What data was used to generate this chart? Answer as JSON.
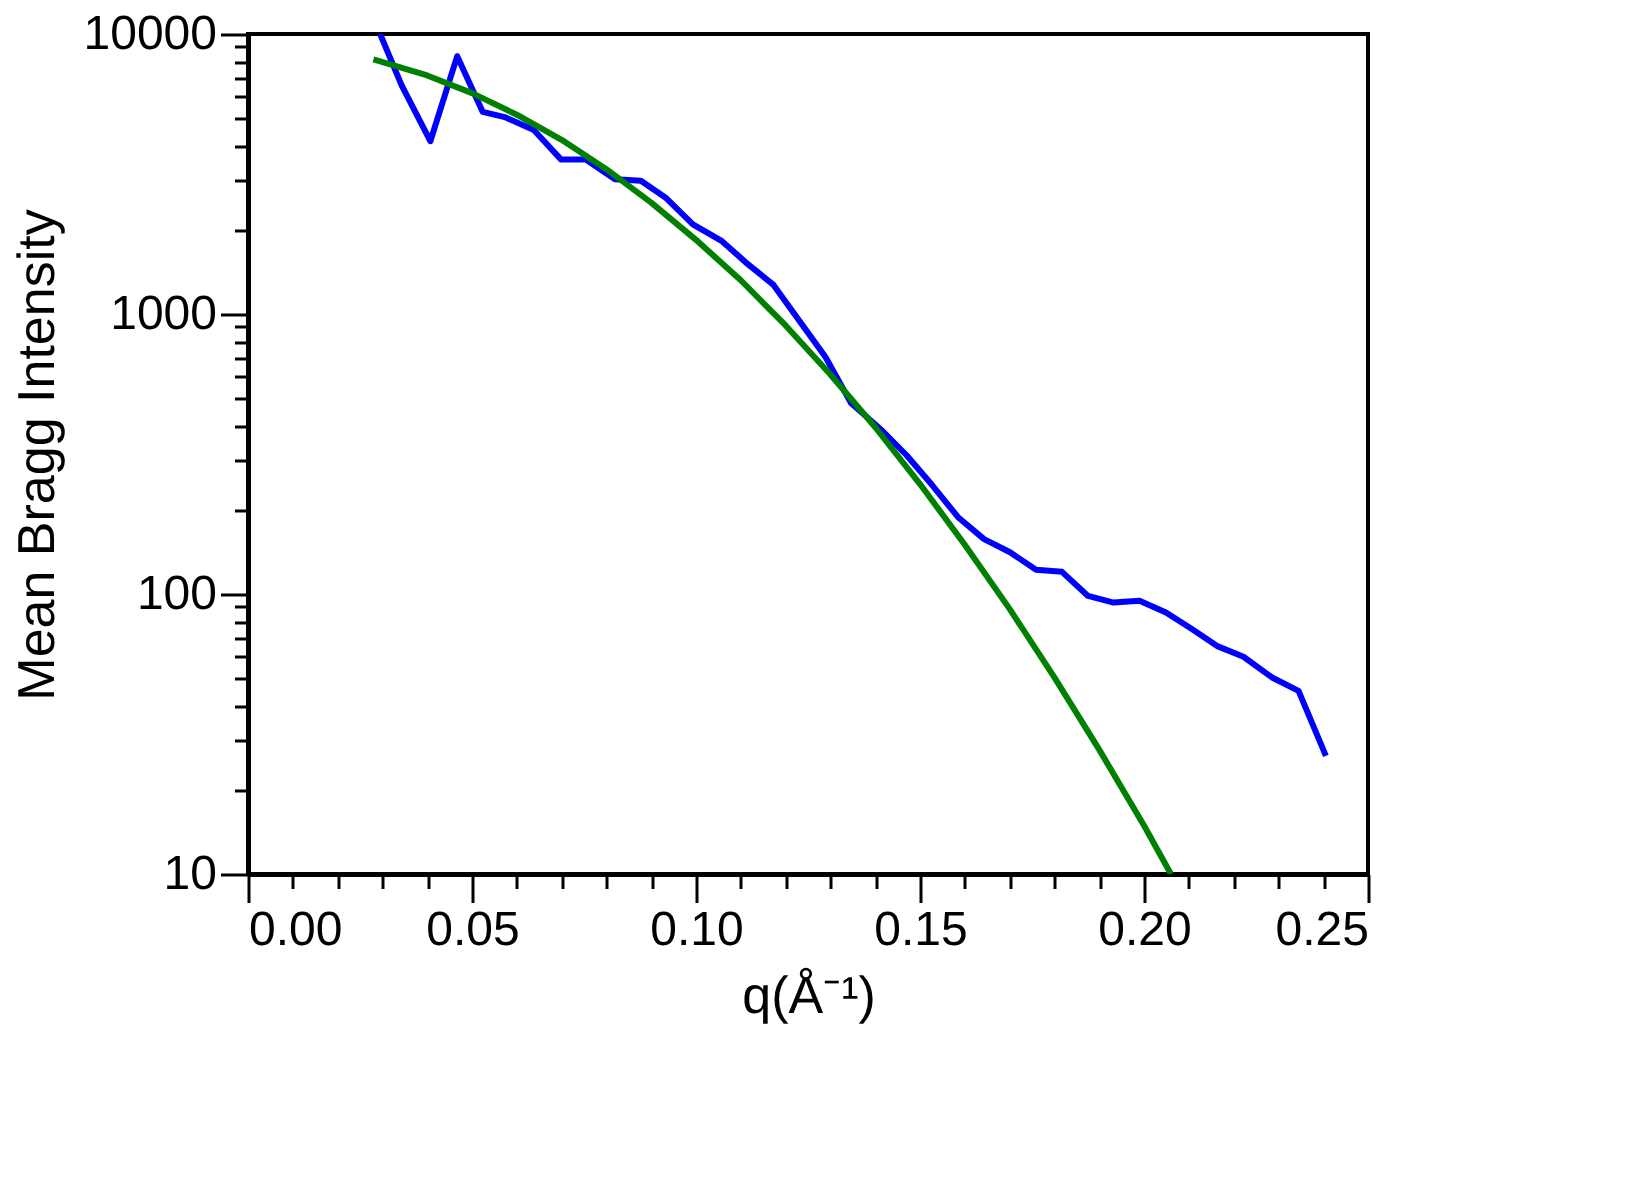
{
  "chart_data": {
    "type": "line",
    "xlabel": "q(Å⁻¹)",
    "ylabel": "Mean Bragg Intensity",
    "log": "y",
    "grid": false,
    "marker": "none",
    "line_style": "solid",
    "xlim": [
      0,
      0.25
    ],
    "ylim": [
      10,
      10000
    ],
    "xticks": [
      {
        "value": 0,
        "label": "0.00"
      },
      {
        "value": 0.01,
        "label": null
      },
      {
        "value": 0.02,
        "label": null
      },
      {
        "value": 0.03,
        "label": null
      },
      {
        "value": 0.04,
        "label": null
      },
      {
        "value": 0.05,
        "label": "0.05"
      },
      {
        "value": 0.06,
        "label": null
      },
      {
        "value": 0.07,
        "label": null
      },
      {
        "value": 0.08,
        "label": null
      },
      {
        "value": 0.09,
        "label": null
      },
      {
        "value": 0.1,
        "label": "0.10"
      },
      {
        "value": 0.11,
        "label": null
      },
      {
        "value": 0.12,
        "label": null
      },
      {
        "value": 0.13,
        "label": null
      },
      {
        "value": 0.14,
        "label": null
      },
      {
        "value": 0.15,
        "label": "0.15"
      },
      {
        "value": 0.16,
        "label": null
      },
      {
        "value": 0.17,
        "label": null
      },
      {
        "value": 0.18,
        "label": null
      },
      {
        "value": 0.19,
        "label": null
      },
      {
        "value": 0.2,
        "label": "0.20"
      },
      {
        "value": 0.21,
        "label": null
      },
      {
        "value": 0.22,
        "label": null
      },
      {
        "value": 0.23,
        "label": null
      },
      {
        "value": 0.24,
        "label": null
      },
      {
        "value": 0.25,
        "label": "0.25"
      }
    ],
    "yticks": [
      10,
      {
        "value": 20,
        "label": null
      },
      {
        "value": 30,
        "label": null
      },
      {
        "value": 40,
        "label": null
      },
      {
        "value": 50,
        "label": null
      },
      {
        "value": 60,
        "label": null
      },
      {
        "value": 70,
        "label": null
      },
      {
        "value": 80,
        "label": null
      },
      {
        "value": 90,
        "label": null
      },
      100,
      {
        "value": 200,
        "label": null
      },
      {
        "value": 300,
        "label": null
      },
      {
        "value": 400,
        "label": null
      },
      {
        "value": 500,
        "label": null
      },
      {
        "value": 600,
        "label": null
      },
      {
        "value": 700,
        "label": null
      },
      {
        "value": 800,
        "label": null
      },
      {
        "value": 900,
        "label": null
      },
      1000,
      {
        "value": 2000,
        "label": null
      },
      {
        "value": 3000,
        "label": null
      },
      {
        "value": 4000,
        "label": null
      },
      {
        "value": 5000,
        "label": null
      },
      {
        "value": 6000,
        "label": null
      },
      {
        "value": 7000,
        "label": null
      },
      {
        "value": 8000,
        "label": null
      },
      {
        "value": 9000,
        "label": null
      },
      10000
    ],
    "series": [
      {
        "color": "#0000ff",
        "x": [
          0.0295,
          0.0343,
          0.0407,
          0.0467,
          0.0524,
          0.0573,
          0.0638,
          0.0699,
          0.0754,
          0.0819,
          0.0877,
          0.0934,
          0.0993,
          0.1058,
          0.1115,
          0.1173,
          0.1231,
          0.1289,
          0.1346,
          0.1412,
          0.147,
          0.1527,
          0.1585,
          0.1643,
          0.1701,
          0.1759,
          0.1817,
          0.1875,
          0.1932,
          0.199,
          0.2049,
          0.2106,
          0.2165,
          0.2222,
          0.2287,
          0.2345,
          0.2406
        ],
        "values": [
          10000,
          6550,
          4140,
          8330,
          5270,
          5050,
          4540,
          3560,
          3560,
          3030,
          2990,
          2590,
          2090,
          1820,
          1510,
          1270,
          944,
          702,
          481,
          388,
          313,
          245,
          188,
          157,
          141,
          122,
          120,
          98.4,
          93.2,
          94.6,
          85.9,
          75.1,
          65.0,
          59.7,
          50.2,
          45.1,
          26.4
        ]
      },
      {
        "color": "#008000",
        "x": [
          0.028,
          0.04,
          0.05,
          0.06,
          0.07,
          0.08,
          0.09,
          0.1,
          0.11,
          0.12,
          0.13,
          0.14,
          0.15,
          0.16,
          0.17,
          0.18,
          0.19,
          0.2,
          0.206
        ],
        "values": [
          8110,
          7110,
          6150,
          5150,
          4190,
          3290,
          2500,
          1840,
          1320,
          910,
          608,
          394,
          247,
          150,
          88.5,
          50.4,
          27.8,
          14.9,
          10
        ]
      }
    ]
  }
}
